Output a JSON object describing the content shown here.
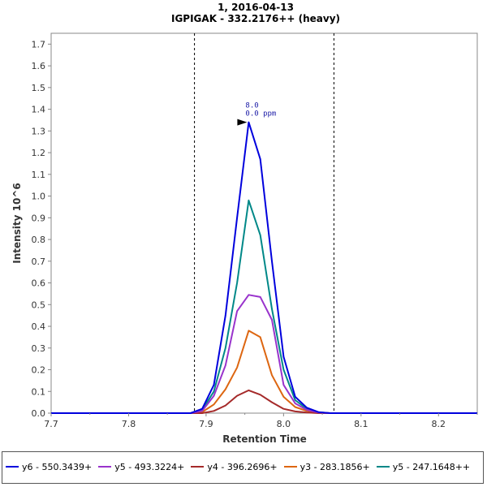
{
  "chart_data": {
    "type": "line",
    "title": "1, 2016-04-13",
    "subtitle": "IGPIGAK - 332.2176++ (heavy)",
    "xlabel": "Retention Time",
    "ylabel": "Intensity 10^6",
    "xlim": [
      7.7,
      8.25
    ],
    "ylim": [
      0,
      1.75
    ],
    "xticks": [
      "7.7",
      "7.8",
      "7.9",
      "8.0",
      "8.1",
      "8.2"
    ],
    "xticks_minor": [
      "7.75",
      "7.85",
      "7.95",
      "8.05",
      "8.15",
      "8.25"
    ],
    "yticks": [
      "0.0",
      "0.1",
      "0.2",
      "0.3",
      "0.4",
      "0.5",
      "0.6",
      "0.7",
      "0.8",
      "0.9",
      "1.0",
      "1.1",
      "1.2",
      "1.3",
      "1.4",
      "1.5",
      "1.6",
      "1.7"
    ],
    "grid": false,
    "legend_position": "bottom",
    "integration_bounds": [
      7.885,
      8.065
    ],
    "annotation": {
      "x": 7.955,
      "y": 1.34,
      "lines": [
        "8.0",
        "0.0 ppm"
      ]
    },
    "x": [
      7.7,
      7.715,
      7.73,
      7.745,
      7.76,
      7.775,
      7.79,
      7.805,
      7.82,
      7.835,
      7.85,
      7.865,
      7.88,
      7.895,
      7.91,
      7.925,
      7.94,
      7.955,
      7.97,
      7.985,
      8.0,
      8.015,
      8.03,
      8.045,
      8.06,
      8.075,
      8.09,
      8.105,
      8.12,
      8.135,
      8.15,
      8.165,
      8.18,
      8.195,
      8.21,
      8.225,
      8.25
    ],
    "series": [
      {
        "name": "y6 - 550.3439+",
        "color": "#0000dd",
        "values": [
          0,
          0,
          0,
          0,
          0,
          0,
          0,
          0,
          0,
          0,
          0,
          0,
          0,
          0.02,
          0.13,
          0.45,
          0.9,
          1.34,
          1.17,
          0.7,
          0.26,
          0.075,
          0.025,
          0.005,
          0,
          0,
          0,
          0,
          0,
          0,
          0,
          0,
          0,
          0,
          0,
          0,
          0
        ]
      },
      {
        "name": "y5 - 493.3224+",
        "color": "#9933cc",
        "values": [
          0,
          0,
          0,
          0,
          0,
          0,
          0,
          0,
          0,
          0,
          0,
          0,
          0,
          0.01,
          0.08,
          0.22,
          0.47,
          0.545,
          0.535,
          0.43,
          0.13,
          0.045,
          0.015,
          0.003,
          0,
          0,
          0,
          0,
          0,
          0,
          0,
          0,
          0,
          0,
          0,
          0,
          0
        ]
      },
      {
        "name": "y4 - 396.2696+",
        "color": "#a52a2a",
        "values": [
          0,
          0,
          0,
          0,
          0,
          0,
          0,
          0,
          0,
          0,
          0,
          0,
          0,
          0,
          0.01,
          0.035,
          0.08,
          0.105,
          0.085,
          0.05,
          0.02,
          0.008,
          0.003,
          0,
          0,
          0,
          0,
          0,
          0,
          0,
          0,
          0,
          0,
          0,
          0,
          0,
          0
        ]
      },
      {
        "name": "y3 - 283.1856+",
        "color": "#dd6611",
        "values": [
          0,
          0,
          0,
          0,
          0,
          0,
          0,
          0,
          0,
          0,
          0,
          0,
          0,
          0.005,
          0.04,
          0.11,
          0.21,
          0.38,
          0.35,
          0.175,
          0.075,
          0.028,
          0.01,
          0.002,
          0,
          0,
          0,
          0,
          0,
          0,
          0,
          0,
          0,
          0,
          0,
          0,
          0
        ]
      },
      {
        "name": "y5 - 247.1648++",
        "color": "#008888",
        "values": [
          0,
          0,
          0,
          0,
          0,
          0,
          0,
          0,
          0,
          0,
          0,
          0,
          0,
          0.015,
          0.1,
          0.3,
          0.6,
          0.98,
          0.82,
          0.48,
          0.2,
          0.06,
          0.02,
          0.004,
          0,
          0,
          0,
          0,
          0,
          0,
          0,
          0,
          0,
          0,
          0,
          0,
          0
        ]
      }
    ]
  }
}
